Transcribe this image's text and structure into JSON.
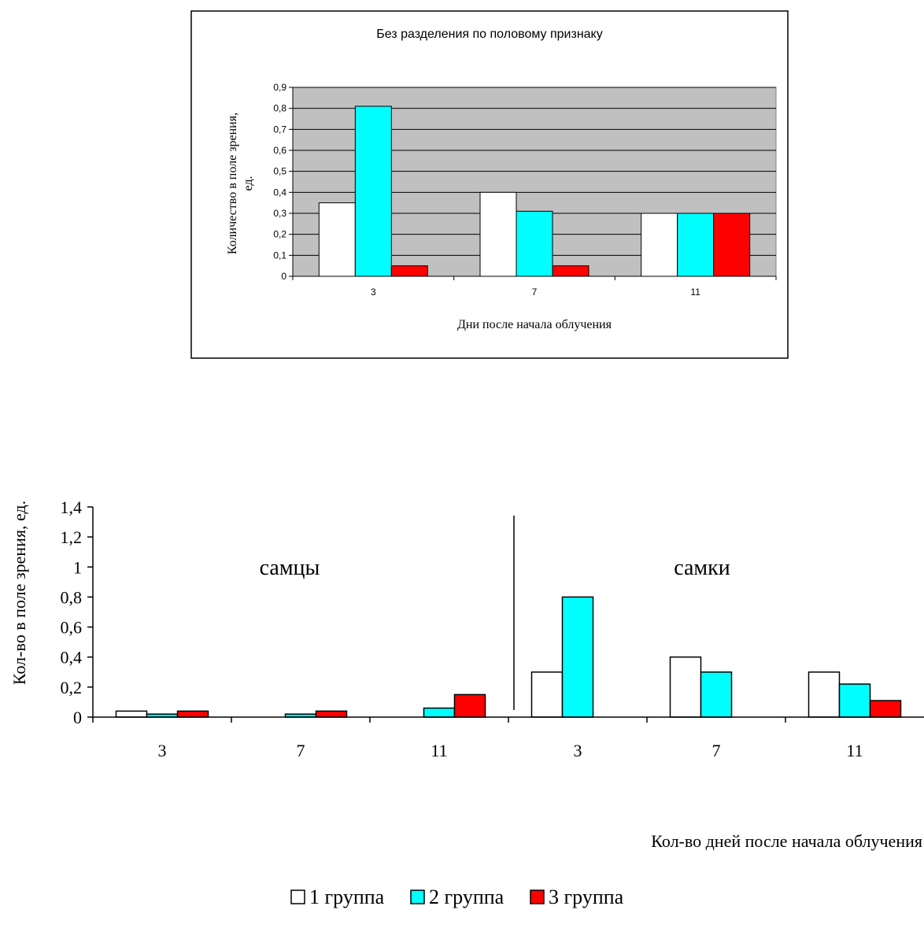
{
  "colors": {
    "group1": "#ffffff",
    "group2": "#00ffff",
    "group3": "#ff0000",
    "plot_area": "#c0c0c0"
  },
  "chart_data": [
    {
      "type": "bar",
      "title": "Без разделения по половому признаку",
      "xlabel": "Дни после начала облучения",
      "ylabel": "Количество в поле зрения, ед.",
      "categories": [
        "3",
        "7",
        "11"
      ],
      "ylim": [
        0,
        0.9
      ],
      "yticks": [
        "0",
        "0,1",
        "0,2",
        "0,3",
        "0,4",
        "0,5",
        "0,6",
        "0,7",
        "0,8",
        "0,9"
      ],
      "ytick_values": [
        0,
        0.1,
        0.2,
        0.3,
        0.4,
        0.5,
        0.6,
        0.7,
        0.8,
        0.9
      ],
      "grid": true,
      "series": [
        {
          "values": [
            0.35,
            0.4,
            0.3
          ]
        },
        {
          "values": [
            0.81,
            0.31,
            0.3
          ]
        },
        {
          "values": [
            0.05,
            0.05,
            0.3
          ]
        }
      ]
    },
    {
      "type": "bar",
      "title": "",
      "xlabel": "Кол-во дней после начала облучения",
      "ylabel": "Кол-во в поле зрения, ед.",
      "categories": [
        "3",
        "7",
        "11",
        "3",
        "7",
        "11"
      ],
      "groups": [
        "самцы",
        "самки"
      ],
      "ylim": [
        0,
        1.4
      ],
      "yticks": [
        "0",
        "0,2",
        "0,4",
        "0,6",
        "0,8",
        "1",
        "1,2",
        "1,4"
      ],
      "ytick_values": [
        0,
        0.2,
        0.4,
        0.6,
        0.8,
        1.0,
        1.2,
        1.4
      ],
      "grid": false,
      "legend_position": "bottom",
      "series": [
        {
          "name": "1 группа",
          "values": [
            0.04,
            0,
            0,
            0.3,
            0.4,
            0.3
          ]
        },
        {
          "name": "2 группа",
          "values": [
            0.02,
            0.02,
            0.06,
            0.8,
            0.3,
            0.22
          ]
        },
        {
          "name": "3 группа",
          "values": [
            0.04,
            0.04,
            0.15,
            0,
            0,
            0.11
          ]
        }
      ]
    }
  ]
}
